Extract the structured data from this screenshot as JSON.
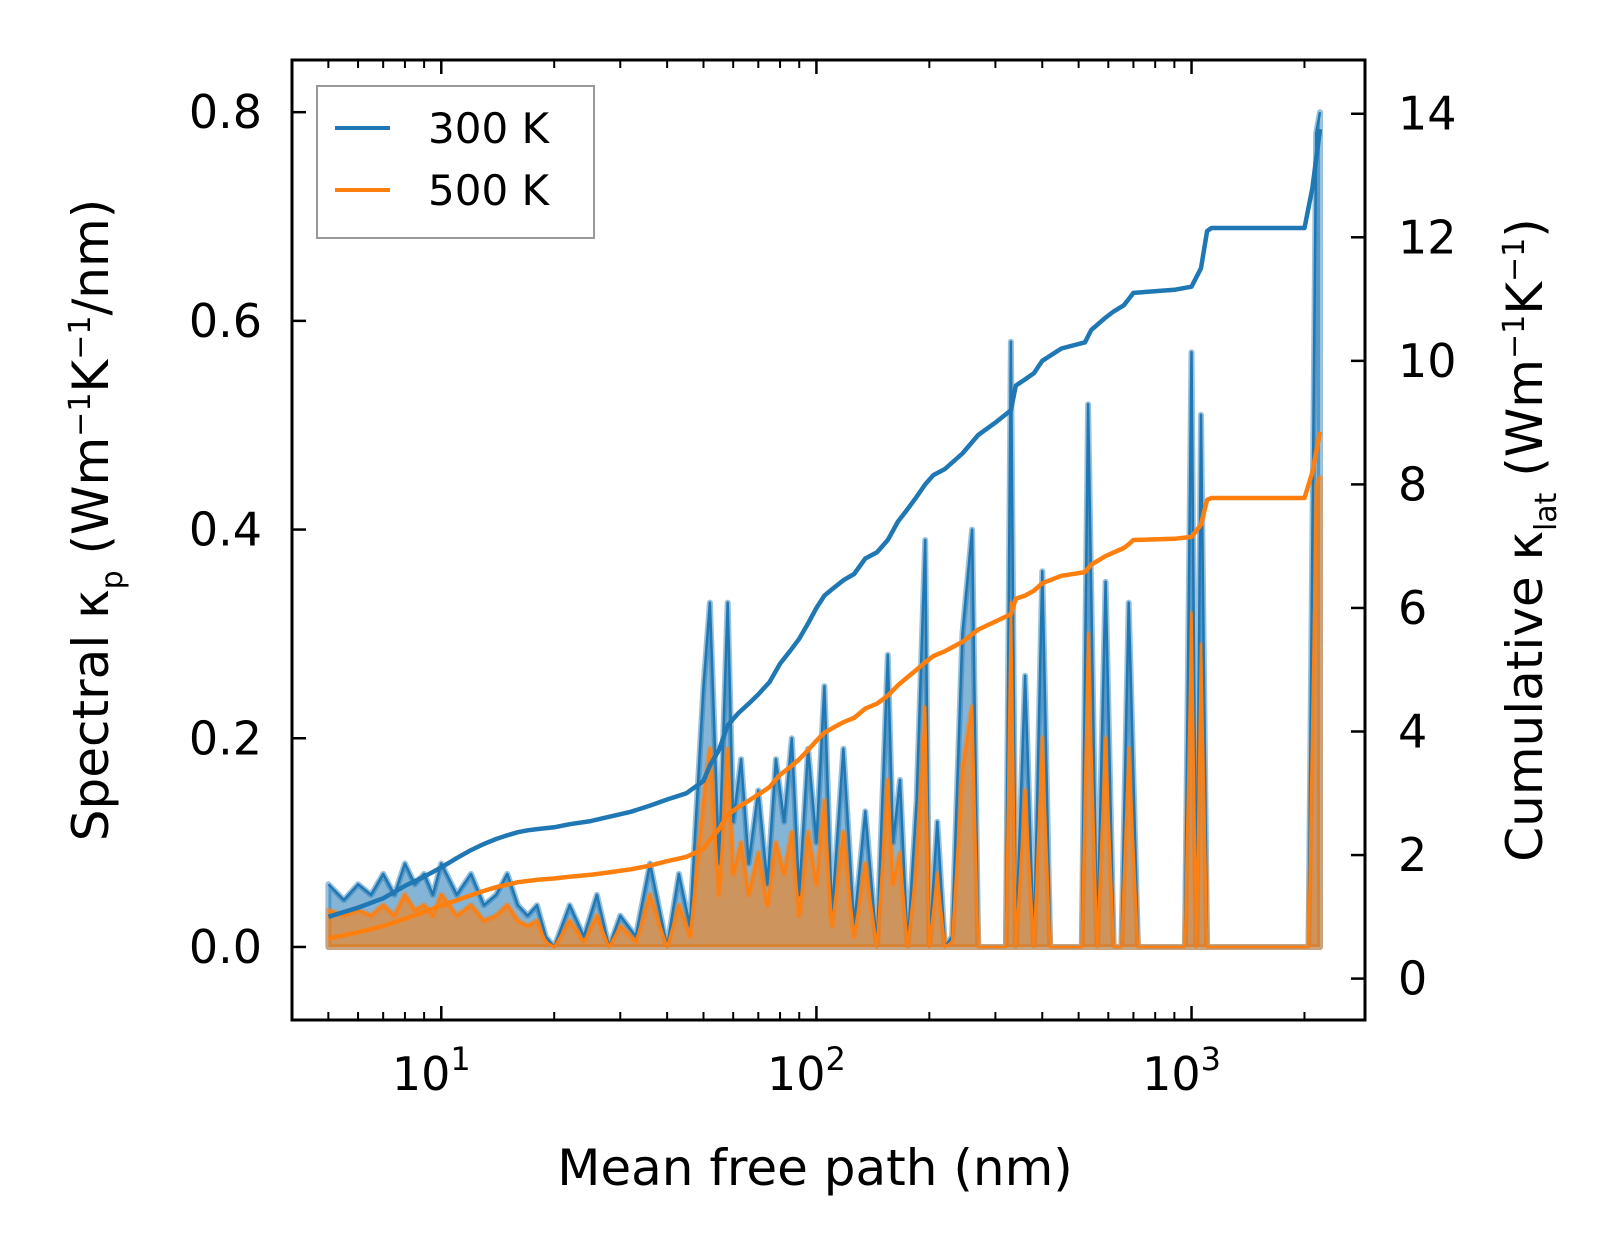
{
  "chart_data": {
    "type": "line",
    "x_scale": "log",
    "xlabel": "Mean free path (nm)",
    "ylabel_left": {
      "prefix": "Spectral κ",
      "sub": "p",
      "mid": " (Wm",
      "sup1": "−1",
      "k": "K",
      "sup2": "−1",
      "suffix": "/nm)"
    },
    "ylabel_right": {
      "prefix": "Cumulative κ",
      "sub": "lat",
      "mid": " (Wm",
      "sup1": "−1",
      "k": "K",
      "sup2": "−1",
      "suffix": ")"
    },
    "xlim": [
      4.0,
      2900
    ],
    "ylim_left": [
      -0.07,
      0.85
    ],
    "ylim_right": [
      -0.67,
      14.87
    ],
    "x_ticks": [
      {
        "value": 10,
        "base": "10",
        "exp": "1"
      },
      {
        "value": 100,
        "base": "10",
        "exp": "2"
      },
      {
        "value": 1000,
        "base": "10",
        "exp": "3"
      }
    ],
    "y_ticks_left": [
      {
        "value": 0.0,
        "label": "0.0"
      },
      {
        "value": 0.2,
        "label": "0.2"
      },
      {
        "value": 0.4,
        "label": "0.4"
      },
      {
        "value": 0.6,
        "label": "0.6"
      },
      {
        "value": 0.8,
        "label": "0.8"
      }
    ],
    "y_ticks_right": [
      {
        "value": 0,
        "label": "0"
      },
      {
        "value": 2,
        "label": "2"
      },
      {
        "value": 4,
        "label": "4"
      },
      {
        "value": 6,
        "label": "6"
      },
      {
        "value": 8,
        "label": "8"
      },
      {
        "value": 10,
        "label": "10"
      },
      {
        "value": 12,
        "label": "12"
      },
      {
        "value": 14,
        "label": "14"
      }
    ],
    "legend": {
      "position": "top-left",
      "entries": [
        {
          "label": "300 K",
          "color": "#1f77b4"
        },
        {
          "label": "500 K",
          "color": "#ff7f0e"
        }
      ]
    },
    "spectral_300K": {
      "color": "#1f77b4",
      "x": [
        5,
        5.5,
        6,
        6.5,
        7,
        7.5,
        8,
        8.5,
        9,
        9.5,
        10,
        11,
        12,
        13,
        14,
        15,
        16,
        17,
        18,
        19,
        20,
        22,
        24,
        26,
        28,
        30,
        33,
        36,
        40,
        43,
        46,
        50,
        52,
        55,
        58,
        60,
        63,
        66,
        70,
        74,
        78,
        82,
        86,
        90,
        95,
        100,
        105,
        110,
        118,
        126,
        135,
        145,
        155,
        160,
        167,
        175,
        185,
        195,
        200,
        210,
        220,
        230,
        245,
        260,
        270,
        280,
        300,
        320,
        330,
        340,
        360,
        380,
        400,
        420,
        450,
        480,
        510,
        530,
        560,
        590,
        620,
        650,
        680,
        720,
        800,
        900,
        960,
        1000,
        1030,
        1060,
        1100,
        1130,
        1180,
        1300,
        1600,
        1950,
        2050,
        2150,
        2200
      ],
      "y": [
        0.06,
        0.045,
        0.06,
        0.05,
        0.07,
        0.05,
        0.08,
        0.06,
        0.07,
        0.05,
        0.08,
        0.05,
        0.07,
        0.04,
        0.05,
        0.07,
        0.04,
        0.03,
        0.04,
        0.01,
        0.0,
        0.04,
        0.01,
        0.05,
        0.0,
        0.03,
        0.01,
        0.08,
        0.0,
        0.07,
        0.02,
        0.25,
        0.33,
        0.08,
        0.33,
        0.12,
        0.18,
        0.08,
        0.15,
        0.06,
        0.18,
        0.12,
        0.2,
        0.05,
        0.19,
        0.1,
        0.25,
        0.03,
        0.19,
        0.02,
        0.13,
        0.0,
        0.28,
        0.1,
        0.16,
        0.0,
        0.14,
        0.39,
        0.0,
        0.12,
        0.0,
        0.01,
        0.3,
        0.4,
        0.0,
        0.0,
        0.0,
        0.0,
        0.58,
        0.0,
        0.26,
        0.0,
        0.36,
        0.0,
        0.0,
        0.0,
        0.0,
        0.52,
        0.0,
        0.35,
        0.0,
        0.0,
        0.33,
        0.0,
        0.0,
        0.0,
        0.0,
        0.57,
        0.0,
        0.51,
        0.0,
        0.0,
        0.0,
        0.0,
        0.0,
        0.0,
        0.0,
        0.78,
        0.8
      ]
    },
    "spectral_500K": {
      "color": "#ff7f0e",
      "x": [
        5,
        5.5,
        6,
        6.5,
        7,
        7.5,
        8,
        8.5,
        9,
        9.5,
        10,
        11,
        12,
        13,
        14,
        15,
        16,
        17,
        18,
        19,
        20,
        22,
        24,
        26,
        28,
        30,
        33,
        36,
        40,
        43,
        46,
        50,
        52,
        55,
        58,
        60,
        63,
        66,
        70,
        74,
        78,
        82,
        86,
        90,
        95,
        100,
        105,
        110,
        118,
        126,
        135,
        145,
        155,
        160,
        167,
        175,
        185,
        195,
        200,
        210,
        220,
        230,
        245,
        260,
        270,
        280,
        300,
        320,
        330,
        340,
        360,
        380,
        400,
        420,
        450,
        480,
        510,
        530,
        560,
        590,
        620,
        650,
        680,
        720,
        800,
        900,
        960,
        1000,
        1030,
        1060,
        1100,
        1130,
        1180,
        1300,
        1600,
        1950,
        2050,
        2150,
        2200
      ],
      "y": [
        0.035,
        0.03,
        0.035,
        0.03,
        0.04,
        0.03,
        0.05,
        0.035,
        0.04,
        0.03,
        0.05,
        0.03,
        0.04,
        0.025,
        0.03,
        0.04,
        0.025,
        0.02,
        0.025,
        0.005,
        0.0,
        0.025,
        0.005,
        0.03,
        0.0,
        0.02,
        0.005,
        0.05,
        0.0,
        0.04,
        0.01,
        0.14,
        0.19,
        0.05,
        0.19,
        0.07,
        0.1,
        0.05,
        0.09,
        0.04,
        0.1,
        0.07,
        0.11,
        0.03,
        0.11,
        0.06,
        0.14,
        0.02,
        0.11,
        0.01,
        0.08,
        0.0,
        0.16,
        0.06,
        0.09,
        0.0,
        0.08,
        0.23,
        0.0,
        0.07,
        0.0,
        0.005,
        0.17,
        0.23,
        0.0,
        0.0,
        0.0,
        0.0,
        0.33,
        0.0,
        0.15,
        0.0,
        0.2,
        0.0,
        0.0,
        0.0,
        0.0,
        0.3,
        0.0,
        0.2,
        0.0,
        0.0,
        0.19,
        0.0,
        0.0,
        0.0,
        0.0,
        0.32,
        0.0,
        0.29,
        0.0,
        0.0,
        0.0,
        0.0,
        0.0,
        0.0,
        0.0,
        0.44,
        0.45
      ]
    },
    "cumulative_300K": {
      "color": "#1f77b4",
      "x": [
        5,
        6,
        7,
        8,
        9,
        10,
        11,
        12,
        13,
        14,
        15,
        16,
        17,
        18,
        20,
        22,
        25,
        28,
        32,
        36,
        40,
        45,
        50,
        52,
        55,
        58,
        62,
        66,
        70,
        75,
        80,
        85,
        90,
        95,
        100,
        105,
        110,
        118,
        126,
        135,
        145,
        155,
        165,
        175,
        185,
        195,
        205,
        220,
        245,
        270,
        300,
        330,
        340,
        360,
        380,
        400,
        450,
        520,
        540,
        590,
        620,
        660,
        680,
        700,
        900,
        1000,
        1060,
        1100,
        1130,
        2000,
        2100,
        2200
      ],
      "y": [
        1.0,
        1.15,
        1.3,
        1.5,
        1.65,
        1.8,
        1.95,
        2.08,
        2.18,
        2.26,
        2.32,
        2.37,
        2.4,
        2.42,
        2.45,
        2.5,
        2.55,
        2.62,
        2.7,
        2.8,
        2.9,
        3.0,
        3.2,
        3.45,
        3.7,
        4.1,
        4.3,
        4.45,
        4.6,
        4.8,
        5.1,
        5.3,
        5.5,
        5.75,
        6.0,
        6.2,
        6.3,
        6.45,
        6.55,
        6.8,
        6.9,
        7.1,
        7.4,
        7.6,
        7.8,
        8.0,
        8.15,
        8.25,
        8.5,
        8.8,
        9.0,
        9.2,
        9.6,
        9.7,
        9.8,
        10.0,
        10.2,
        10.3,
        10.5,
        10.7,
        10.8,
        10.9,
        11.0,
        11.1,
        11.15,
        11.2,
        11.5,
        12.1,
        12.15,
        12.15,
        12.8,
        13.75
      ]
    },
    "cumulative_500K": {
      "color": "#ff7f0e",
      "x": [
        5,
        6,
        7,
        8,
        9,
        10,
        11,
        12,
        13,
        14,
        15,
        16,
        17,
        18,
        20,
        22,
        25,
        28,
        32,
        36,
        40,
        45,
        50,
        52,
        55,
        58,
        62,
        66,
        70,
        75,
        80,
        85,
        90,
        95,
        100,
        105,
        110,
        118,
        126,
        135,
        145,
        155,
        165,
        175,
        185,
        195,
        205,
        220,
        245,
        270,
        300,
        330,
        340,
        360,
        380,
        400,
        450,
        520,
        540,
        590,
        620,
        660,
        680,
        700,
        900,
        1000,
        1060,
        1100,
        1130,
        2000,
        2100,
        2200
      ],
      "y": [
        0.65,
        0.75,
        0.85,
        0.97,
        1.08,
        1.18,
        1.27,
        1.35,
        1.42,
        1.48,
        1.52,
        1.56,
        1.58,
        1.6,
        1.62,
        1.65,
        1.68,
        1.72,
        1.77,
        1.83,
        1.9,
        1.97,
        2.1,
        2.25,
        2.42,
        2.65,
        2.78,
        2.88,
        2.98,
        3.1,
        3.3,
        3.42,
        3.55,
        3.7,
        3.85,
        3.98,
        4.05,
        4.15,
        4.22,
        4.37,
        4.45,
        4.58,
        4.75,
        4.88,
        5.0,
        5.12,
        5.22,
        5.3,
        5.45,
        5.65,
        5.78,
        5.9,
        6.15,
        6.2,
        6.28,
        6.4,
        6.52,
        6.58,
        6.7,
        6.84,
        6.9,
        6.97,
        7.03,
        7.1,
        7.12,
        7.15,
        7.35,
        7.75,
        7.78,
        7.78,
        8.2,
        8.85
      ]
    }
  }
}
